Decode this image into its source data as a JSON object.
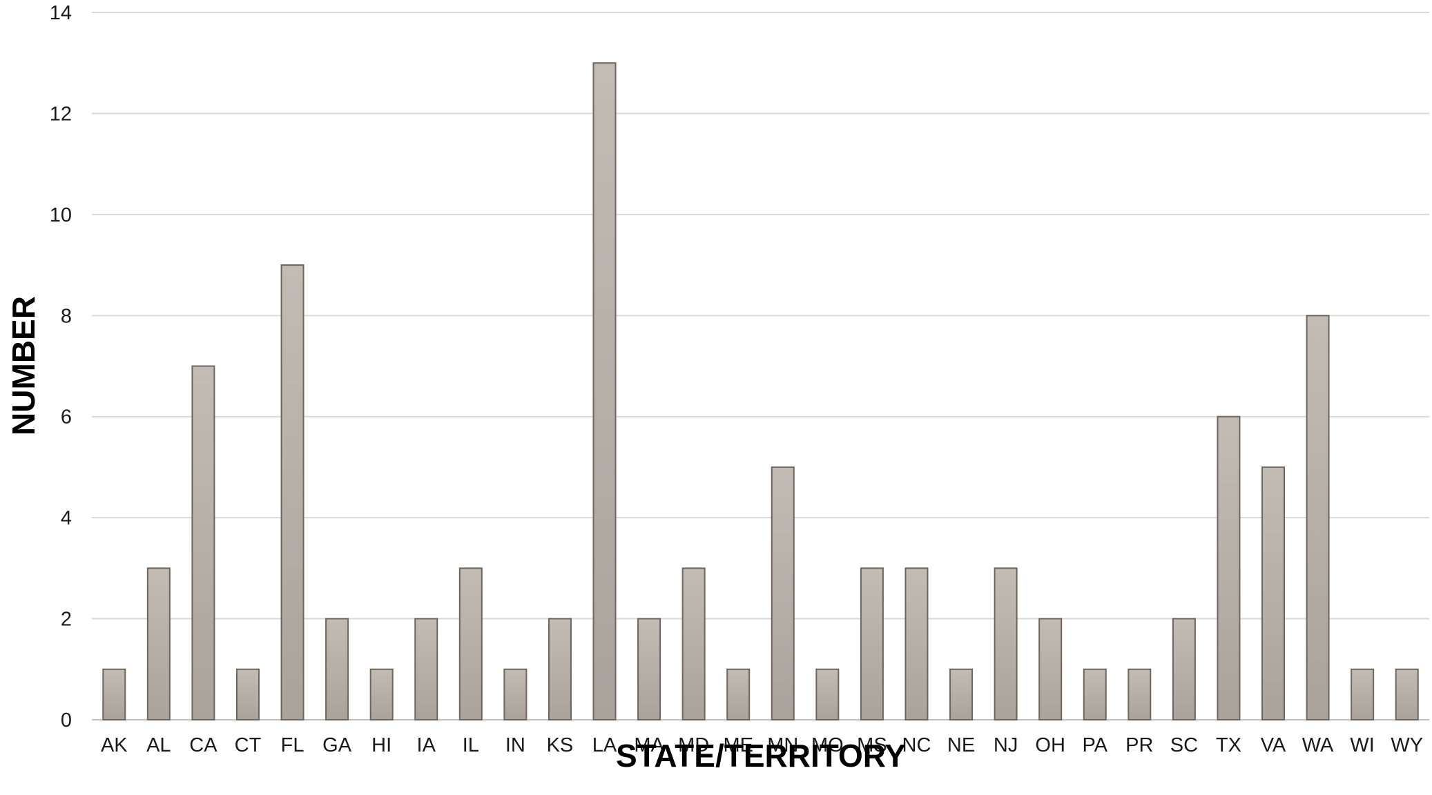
{
  "chart_data": {
    "type": "bar",
    "title": "",
    "xlabel": "STATE/TERRITORY",
    "ylabel": "NUMBER",
    "ylim": [
      0,
      14
    ],
    "yticks": [
      0,
      2,
      4,
      6,
      8,
      10,
      12,
      14
    ],
    "grid": true,
    "legend": "none",
    "categories": [
      "AK",
      "AL",
      "CA",
      "CT",
      "FL",
      "GA",
      "HI",
      "IA",
      "IL",
      "IN",
      "KS",
      "LA",
      "MA",
      "MD",
      "ME",
      "MN",
      "MO",
      "MS",
      "NC",
      "NE",
      "NJ",
      "OH",
      "PA",
      "PR",
      "SC",
      "TX",
      "VA",
      "WA",
      "WI",
      "WY"
    ],
    "values": [
      1,
      3,
      7,
      1,
      9,
      2,
      1,
      2,
      3,
      1,
      2,
      13,
      2,
      3,
      1,
      5,
      1,
      3,
      3,
      1,
      3,
      2,
      1,
      1,
      2,
      6,
      5,
      8,
      1,
      1
    ],
    "colors": {
      "bar_top": "#c2bcb5",
      "bar_bottom": "#a9a39c",
      "bar_border": "#6f655e",
      "grid": "#d9d9d9",
      "text": "#1a1a1a"
    }
  }
}
